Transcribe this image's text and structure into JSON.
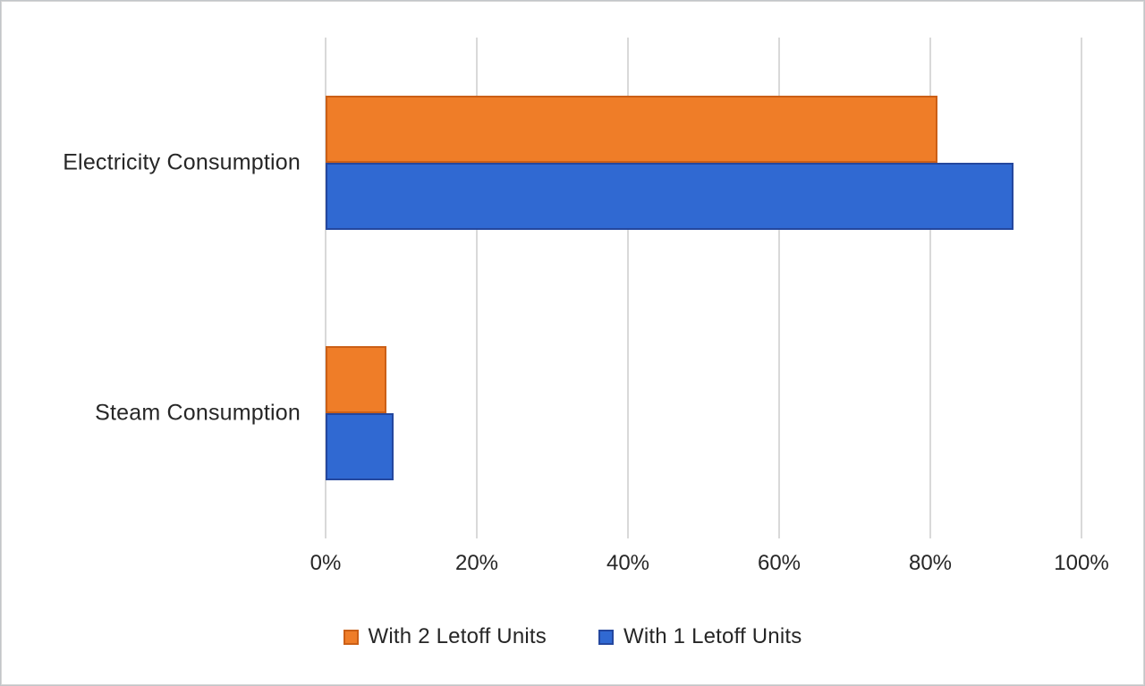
{
  "chart_data": {
    "type": "bar",
    "orientation": "horizontal",
    "title": "",
    "xlabel": "",
    "ylabel": "",
    "categories": [
      "Electricity Consumption",
      "Steam Consumption"
    ],
    "series": [
      {
        "name": "With 2 Letoff Units",
        "fill": "#EF7D28",
        "border": "#CB5F16",
        "values": [
          81,
          8
        ]
      },
      {
        "name": "With 1 Letoff Units",
        "fill": "#3069D2",
        "border": "#24479E",
        "values": [
          91,
          9
        ]
      }
    ],
    "xlim": [
      0,
      100
    ],
    "x_ticks": [
      "0%",
      "20%",
      "40%",
      "60%",
      "80%",
      "100%"
    ],
    "grid": "vertical-only",
    "gridline_color": "#d9d9d9",
    "legend_position": "bottom",
    "background_color": "#ffffff",
    "text_color": "#262626"
  }
}
